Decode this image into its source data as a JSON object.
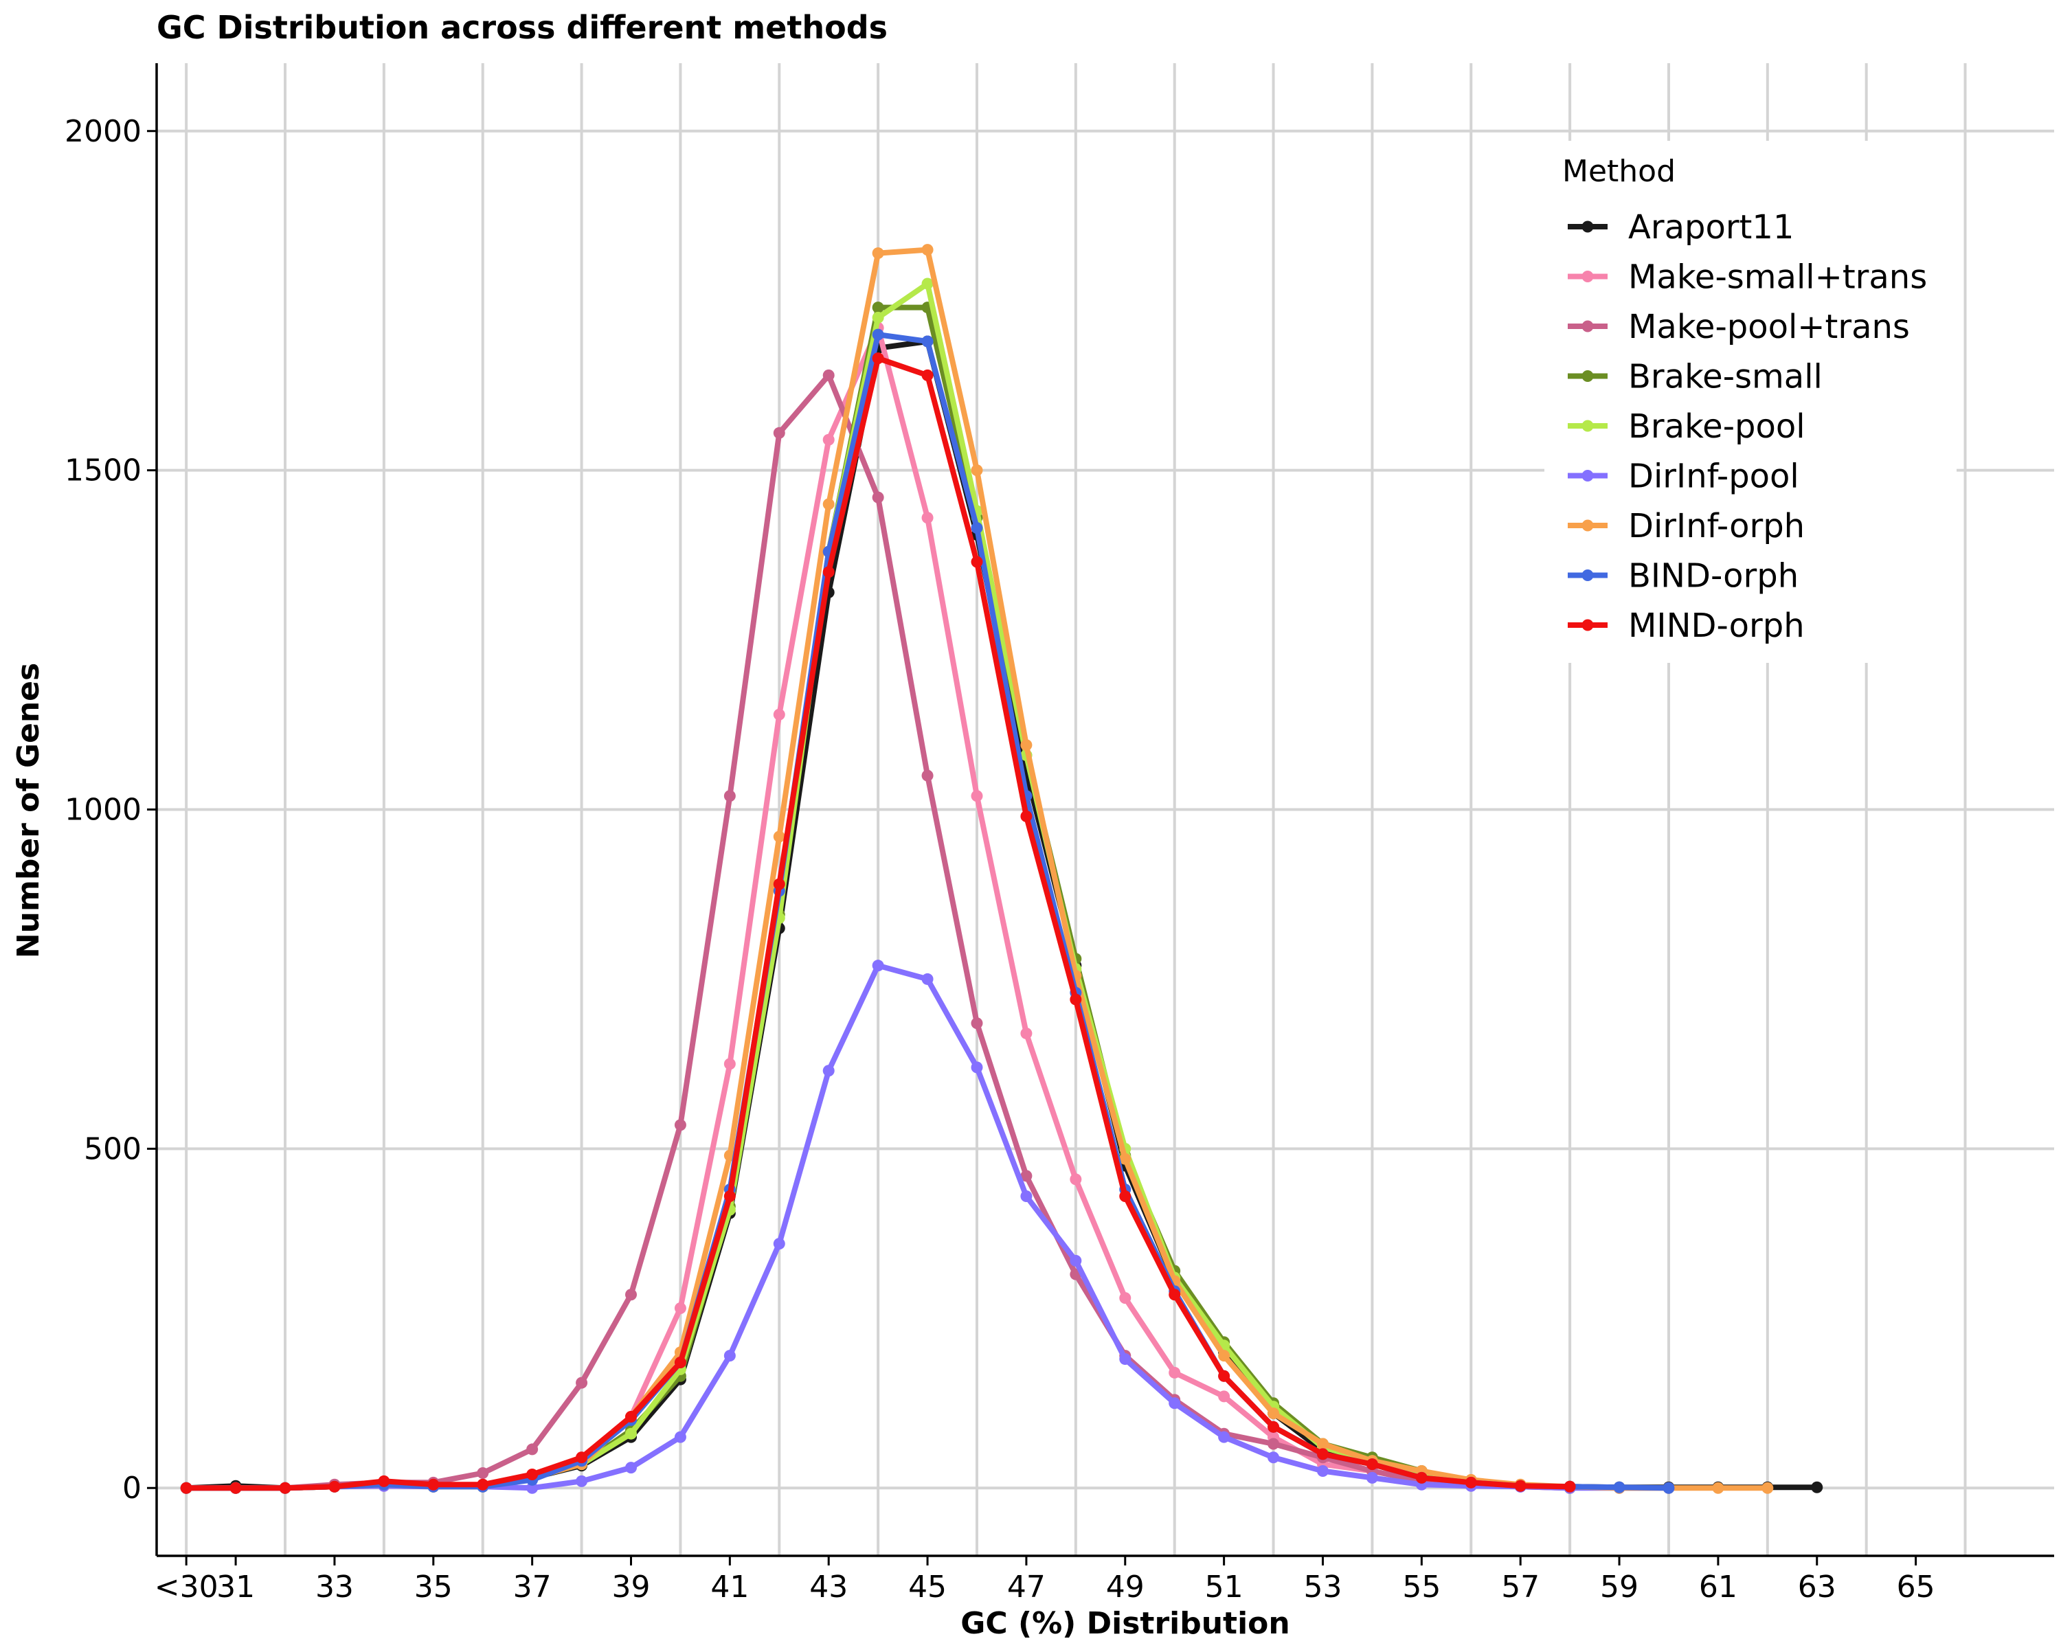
{
  "chart_data": {
    "type": "line",
    "title": "GC Distribution across different methods",
    "xlabel": "GC (%) Distribution",
    "ylabel": "Number of Genes",
    "xlim": [
      29.4,
      67.8
    ],
    "ylim": [
      -100,
      2100
    ],
    "x_ticks": [
      30,
      31,
      33,
      35,
      37,
      39,
      41,
      43,
      45,
      47,
      49,
      51,
      53,
      55,
      57,
      59,
      61,
      63,
      65
    ],
    "x_tick_labels": [
      "<30",
      "31",
      "33",
      "35",
      "37",
      "39",
      "41",
      "43",
      "45",
      "47",
      "49",
      "51",
      "53",
      "55",
      "57",
      "59",
      "61",
      "63",
      "65"
    ],
    "x_grid": [
      30,
      32,
      34,
      36,
      38,
      40,
      42,
      44,
      46,
      48,
      50,
      52,
      54,
      56,
      58,
      60,
      62,
      64,
      66
    ],
    "y_ticks": [
      0,
      500,
      1000,
      1500,
      2000
    ],
    "y_tick_labels": [
      "0",
      "500",
      "1000",
      "1500",
      "2000"
    ],
    "grid": true,
    "legend": {
      "title": "Method",
      "position": "top-right"
    },
    "series": [
      {
        "name": "Araport11",
        "color": "#1a1a1a",
        "x": [
          30,
          31,
          32,
          33,
          34,
          35,
          36,
          37,
          38,
          39,
          40,
          41,
          42,
          43,
          44,
          45,
          46,
          47,
          48,
          49,
          50,
          51,
          52,
          53,
          54,
          55,
          56,
          57,
          58,
          59,
          60,
          61,
          62,
          63
        ],
        "y": [
          0,
          3,
          0,
          2,
          5,
          2,
          3,
          15,
          33,
          75,
          160,
          405,
          825,
          1320,
          1680,
          1690,
          1405,
          1055,
          770,
          475,
          305,
          200,
          110,
          55,
          35,
          15,
          8,
          3,
          2,
          1,
          1,
          1,
          1,
          1
        ]
      },
      {
        "name": "Make-small+trans",
        "color": "#f783ac",
        "x": [
          30,
          31,
          32,
          33,
          34,
          35,
          36,
          37,
          38,
          39,
          40,
          41,
          42,
          43,
          44,
          45,
          46,
          47,
          48,
          49,
          50,
          51,
          52,
          53,
          54,
          55,
          56,
          57,
          58
        ],
        "y": [
          0,
          0,
          0,
          2,
          3,
          2,
          5,
          15,
          45,
          105,
          265,
          625,
          1140,
          1545,
          1710,
          1430,
          1020,
          670,
          455,
          280,
          170,
          135,
          75,
          35,
          25,
          10,
          5,
          2,
          0
        ]
      },
      {
        "name": "Make-pool+trans",
        "color": "#c9608a",
        "x": [
          30,
          31,
          32,
          33,
          34,
          35,
          36,
          37,
          38,
          39,
          40,
          41,
          42,
          43,
          44,
          45,
          46,
          47,
          48,
          49,
          50,
          51,
          52,
          53,
          54,
          55,
          56,
          57,
          58
        ],
        "y": [
          0,
          0,
          0,
          5,
          8,
          8,
          22,
          57,
          155,
          285,
          535,
          1020,
          1555,
          1640,
          1460,
          1050,
          685,
          460,
          315,
          195,
          130,
          80,
          65,
          45,
          25,
          10,
          5,
          2,
          0
        ]
      },
      {
        "name": "Brake-small",
        "color": "#6b8e23",
        "x": [
          30,
          31,
          32,
          33,
          34,
          35,
          36,
          37,
          38,
          39,
          40,
          41,
          42,
          43,
          44,
          45,
          46,
          47,
          48,
          49,
          50,
          51,
          52,
          53,
          54,
          55,
          56,
          57,
          58
        ],
        "y": [
          0,
          0,
          0,
          2,
          5,
          2,
          2,
          15,
          35,
          85,
          165,
          415,
          845,
          1380,
          1740,
          1740,
          1430,
          1080,
          780,
          490,
          320,
          215,
          125,
          65,
          45,
          25,
          10,
          3,
          0
        ]
      },
      {
        "name": "Brake-pool",
        "color": "#b5e94a",
        "x": [
          30,
          31,
          32,
          33,
          34,
          35,
          36,
          37,
          38,
          39,
          40,
          41,
          42,
          43,
          44,
          45,
          46,
          47,
          48,
          49,
          50,
          51,
          52,
          53,
          54,
          55,
          56,
          57,
          58
        ],
        "y": [
          0,
          0,
          0,
          2,
          5,
          2,
          2,
          15,
          35,
          80,
          175,
          410,
          840,
          1380,
          1725,
          1775,
          1440,
          1080,
          765,
          500,
          310,
          210,
          120,
          60,
          40,
          20,
          10,
          3,
          0
        ]
      },
      {
        "name": "DirInf-pool",
        "color": "#8470ff",
        "x": [
          30,
          31,
          32,
          33,
          34,
          35,
          36,
          37,
          38,
          39,
          40,
          41,
          42,
          43,
          44,
          45,
          46,
          47,
          48,
          49,
          50,
          51,
          52,
          53,
          54,
          55,
          56,
          57,
          58,
          59,
          60
        ],
        "y": [
          0,
          0,
          0,
          2,
          3,
          2,
          2,
          0,
          10,
          30,
          75,
          195,
          360,
          615,
          770,
          750,
          620,
          430,
          335,
          190,
          125,
          75,
          45,
          25,
          15,
          5,
          3,
          2,
          0,
          0,
          0
        ]
      },
      {
        "name": "DirInf-orph",
        "color": "#f8a04a",
        "x": [
          30,
          31,
          32,
          33,
          34,
          35,
          36,
          37,
          38,
          39,
          40,
          41,
          42,
          43,
          44,
          45,
          46,
          47,
          48,
          49,
          50,
          51,
          52,
          53,
          54,
          55,
          56,
          57,
          58,
          59,
          60,
          61,
          62
        ],
        "y": [
          0,
          0,
          0,
          2,
          5,
          2,
          2,
          15,
          35,
          105,
          200,
          490,
          960,
          1450,
          1820,
          1825,
          1500,
          1095,
          755,
          485,
          305,
          195,
          110,
          65,
          40,
          25,
          12,
          5,
          2,
          0,
          0,
          0,
          0
        ]
      },
      {
        "name": "BIND-orph",
        "color": "#4169e1",
        "x": [
          30,
          31,
          32,
          33,
          34,
          35,
          36,
          37,
          38,
          39,
          40,
          41,
          42,
          43,
          44,
          45,
          46,
          47,
          48,
          49,
          50,
          51,
          52,
          53,
          54,
          55,
          56,
          57,
          58,
          59,
          60
        ],
        "y": [
          0,
          0,
          0,
          2,
          5,
          2,
          2,
          12,
          40,
          100,
          185,
          440,
          880,
          1380,
          1700,
          1690,
          1415,
          1020,
          730,
          440,
          290,
          165,
          90,
          50,
          35,
          15,
          8,
          3,
          2,
          1,
          0
        ]
      },
      {
        "name": "MIND-orph",
        "color": "#f01010",
        "x": [
          30,
          31,
          32,
          33,
          34,
          35,
          36,
          37,
          38,
          39,
          40,
          41,
          42,
          43,
          44,
          45,
          46,
          47,
          48,
          49,
          50,
          51,
          52,
          53,
          54,
          55,
          56,
          57,
          58
        ],
        "y": [
          0,
          0,
          0,
          2,
          10,
          5,
          5,
          20,
          45,
          105,
          185,
          430,
          890,
          1350,
          1665,
          1640,
          1365,
          990,
          720,
          430,
          285,
          165,
          90,
          50,
          35,
          15,
          8,
          3,
          2
        ]
      }
    ]
  }
}
